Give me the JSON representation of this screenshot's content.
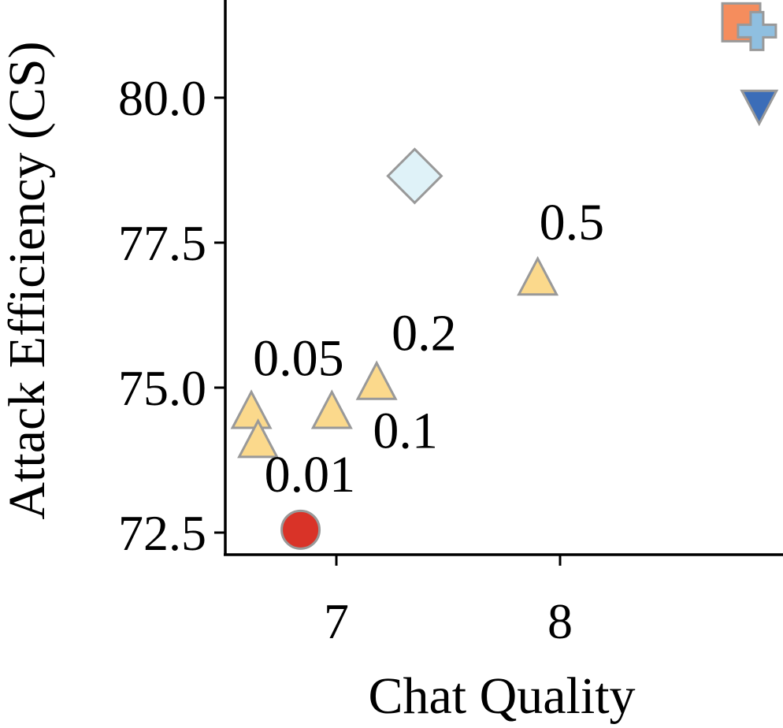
{
  "chart_data": {
    "type": "scatter",
    "title": "",
    "xlabel": "Chat Quality",
    "ylabel": "Attack Efficiency (CS)",
    "xlim": [
      6.5,
      9.0
    ],
    "ylim": [
      72.1,
      81.7
    ],
    "xticks": [
      7,
      8
    ],
    "xtick_labels": [
      "7",
      "8"
    ],
    "yticks": [
      72.5,
      75.0,
      77.5,
      80.0
    ],
    "ytick_labels": [
      "72.5",
      "75.0",
      "77.5",
      "80.0"
    ],
    "grid": false,
    "series": [
      {
        "marker": "triangle-up",
        "color": "#fbd98c",
        "points": [
          {
            "x": 6.62,
            "y": 74.6,
            "label": "0.05"
          },
          {
            "x": 6.65,
            "y": 74.1,
            "label": "0.01"
          },
          {
            "x": 6.98,
            "y": 74.6,
            "label": "0.1"
          },
          {
            "x": 7.18,
            "y": 75.1,
            "label": "0.2"
          },
          {
            "x": 7.9,
            "y": 76.9,
            "label": "0.5"
          }
        ]
      },
      {
        "marker": "circle",
        "color": "#d93328",
        "points": [
          {
            "x": 6.84,
            "y": 72.55
          }
        ]
      },
      {
        "marker": "diamond",
        "color": "#dff2f8",
        "points": [
          {
            "x": 7.35,
            "y": 78.65
          }
        ]
      },
      {
        "marker": "square",
        "color": "#f58d5d",
        "points": [
          {
            "x": 8.81,
            "y": 81.3
          }
        ]
      },
      {
        "marker": "plus",
        "color": "#8fbfe0",
        "points": [
          {
            "x": 8.88,
            "y": 81.15
          }
        ]
      },
      {
        "marker": "triangle-down",
        "color": "#3b6db8",
        "points": [
          {
            "x": 8.89,
            "y": 79.85
          }
        ]
      }
    ]
  }
}
